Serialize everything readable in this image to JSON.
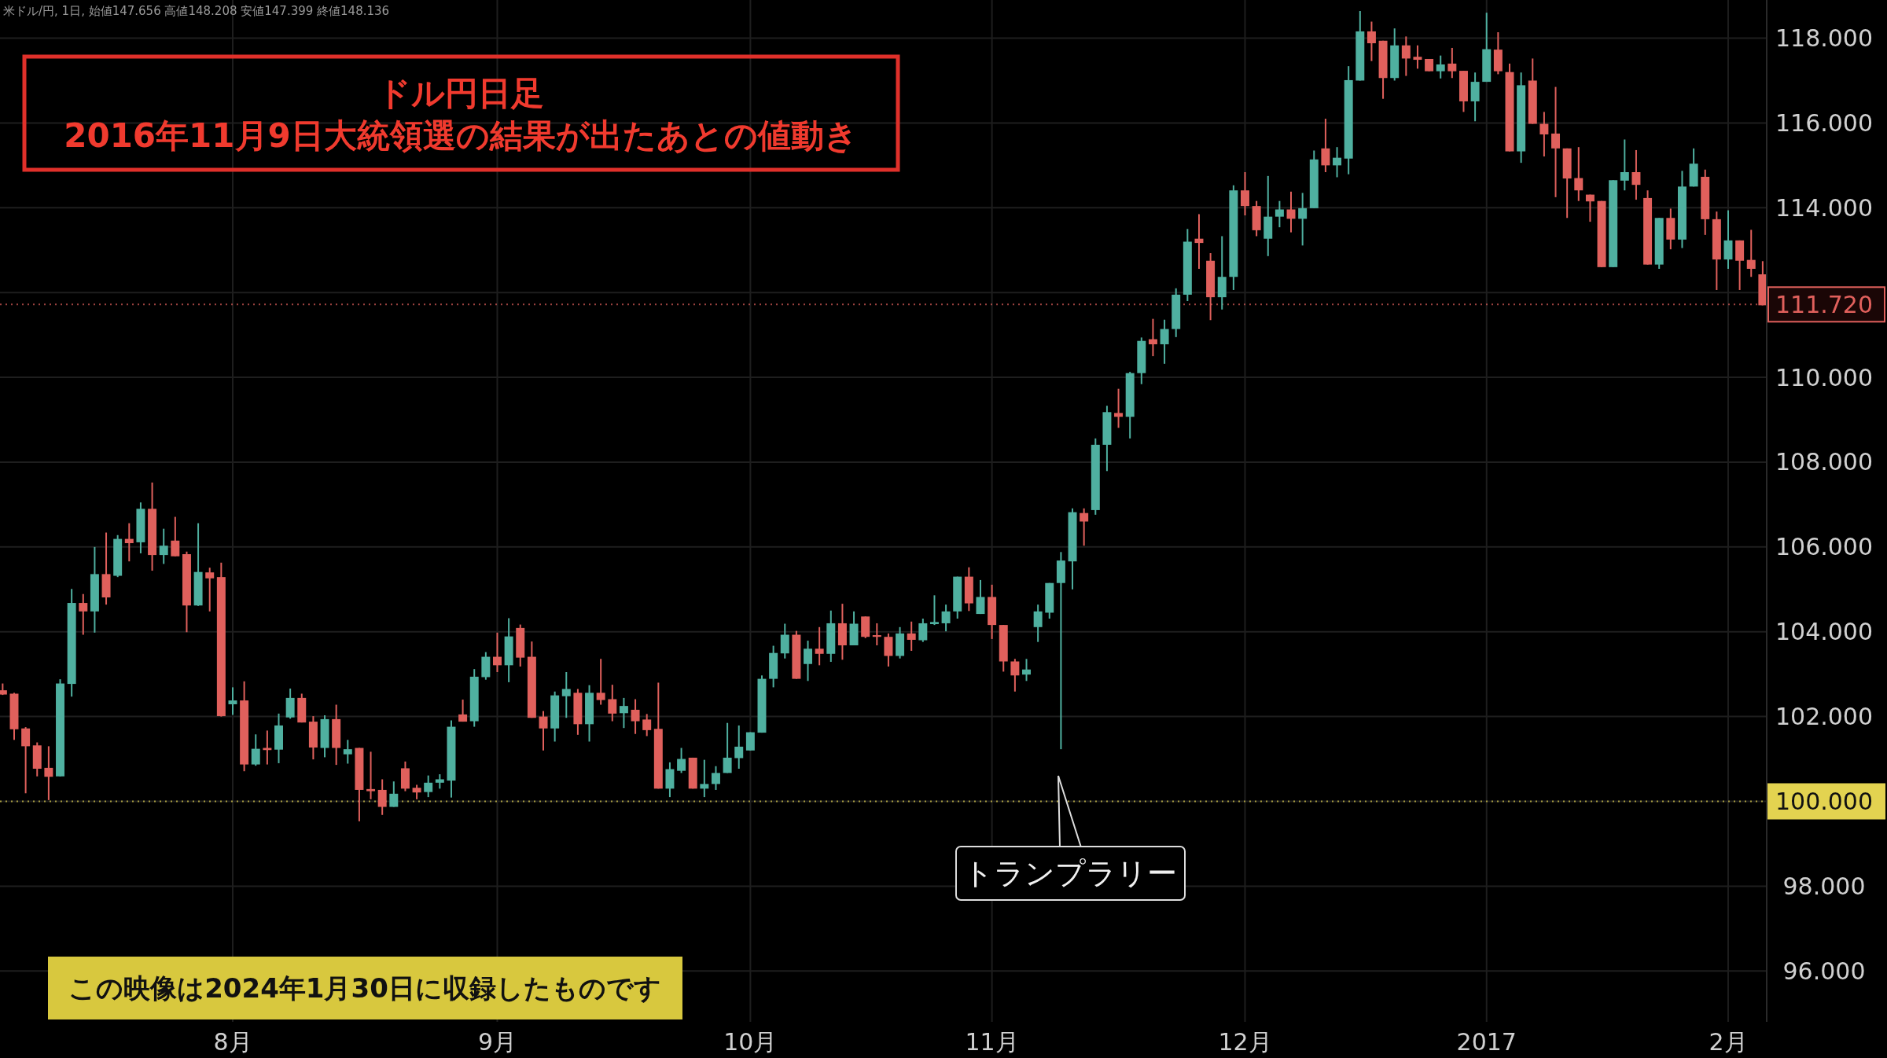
{
  "chart_data": {
    "type": "candlestick",
    "title": "ドル円日足",
    "subtitle": "2016年11月9日大統領選の結果が出たあとの値動き",
    "annotations": [
      "米ドル/円, 1日, 始値147.656 高値148.208 安値147.399 終値148.136",
      "トランプラリー",
      "この映像は2024年1月30日に収録したものです"
    ],
    "categories": [
      null,
      null,
      null,
      null,
      null,
      null,
      null,
      null,
      null,
      null,
      null,
      null,
      null,
      null,
      null,
      null,
      null,
      null,
      null,
      null,
      "8月",
      null,
      null,
      null,
      null,
      null,
      null,
      null,
      null,
      null,
      null,
      null,
      null,
      null,
      null,
      null,
      null,
      null,
      null,
      null,
      null,
      null,
      null,
      "9月",
      null,
      null,
      null,
      null,
      null,
      null,
      null,
      null,
      null,
      null,
      null,
      null,
      null,
      null,
      null,
      null,
      null,
      null,
      null,
      null,
      null,
      "10月",
      null,
      null,
      null,
      null,
      null,
      null,
      null,
      null,
      null,
      null,
      null,
      null,
      null,
      null,
      null,
      null,
      null,
      null,
      null,
      null,
      "11月",
      null,
      null,
      null,
      null,
      null,
      null,
      null,
      null,
      null,
      null,
      null,
      null,
      null,
      null,
      null,
      null,
      null,
      null,
      null,
      null,
      null,
      "12月",
      null,
      null,
      null,
      null,
      null,
      null,
      null,
      null,
      null,
      null,
      null,
      null,
      null,
      null,
      null,
      null,
      null,
      null,
      null,
      null,
      "2017",
      null,
      null,
      null,
      null,
      null,
      null,
      null,
      null,
      null,
      null,
      null,
      null,
      null,
      null,
      null,
      null,
      null,
      null,
      null,
      null,
      "2月",
      null,
      null,
      null
    ],
    "ohlc": [
      [
        102.62,
        102.78,
        102.51,
        102.52
      ],
      [
        102.54,
        102.56,
        101.45,
        101.7
      ],
      [
        101.72,
        101.75,
        100.19,
        101.3
      ],
      [
        101.32,
        101.39,
        100.59,
        100.77
      ],
      [
        100.79,
        101.3,
        100.03,
        100.58
      ],
      [
        100.59,
        102.88,
        100.59,
        102.78
      ],
      [
        102.77,
        105.01,
        102.47,
        104.68
      ],
      [
        104.68,
        104.89,
        103.93,
        104.48
      ],
      [
        104.48,
        106.0,
        103.98,
        105.36
      ],
      [
        105.36,
        106.34,
        104.64,
        104.81
      ],
      [
        105.32,
        106.28,
        105.29,
        106.19
      ],
      [
        106.19,
        106.56,
        105.66,
        106.09
      ],
      [
        106.11,
        107.05,
        105.85,
        106.9
      ],
      [
        106.9,
        107.52,
        105.44,
        105.81
      ],
      [
        105.81,
        106.43,
        105.6,
        106.03
      ],
      [
        106.15,
        106.71,
        105.78,
        105.78
      ],
      [
        105.83,
        105.89,
        103.99,
        104.62
      ],
      [
        104.62,
        106.56,
        104.61,
        105.41
      ],
      [
        105.4,
        105.51,
        104.48,
        105.26
      ],
      [
        105.29,
        105.63,
        102.0,
        102.01
      ],
      [
        102.29,
        102.69,
        102.04,
        102.38
      ],
      [
        102.38,
        102.83,
        100.71,
        100.87
      ],
      [
        100.87,
        101.58,
        100.84,
        101.24
      ],
      [
        101.26,
        101.67,
        100.87,
        101.21
      ],
      [
        101.22,
        102.07,
        100.9,
        101.79
      ],
      [
        101.98,
        102.66,
        101.95,
        102.44
      ],
      [
        102.44,
        102.54,
        101.86,
        101.86
      ],
      [
        101.88,
        102.01,
        100.99,
        101.27
      ],
      [
        101.26,
        102.03,
        101.04,
        101.94
      ],
      [
        101.94,
        102.28,
        100.86,
        101.26
      ],
      [
        101.11,
        101.45,
        100.89,
        101.23
      ],
      [
        101.26,
        101.26,
        99.53,
        100.27
      ],
      [
        100.29,
        101.17,
        100.05,
        100.24
      ],
      [
        100.27,
        100.52,
        99.68,
        99.87
      ],
      [
        99.87,
        100.47,
        99.87,
        100.18
      ],
      [
        100.78,
        100.94,
        100.24,
        100.3
      ],
      [
        100.32,
        100.39,
        100.05,
        100.21
      ],
      [
        100.22,
        100.61,
        100.1,
        100.44
      ],
      [
        100.44,
        100.64,
        100.3,
        100.52
      ],
      [
        100.49,
        101.91,
        100.09,
        101.76
      ],
      [
        102.05,
        102.4,
        101.88,
        101.88
      ],
      [
        101.89,
        103.12,
        101.76,
        102.94
      ],
      [
        102.93,
        103.52,
        102.87,
        103.41
      ],
      [
        103.41,
        103.98,
        103.05,
        103.21
      ],
      [
        103.21,
        104.32,
        102.81,
        103.89
      ],
      [
        104.09,
        104.17,
        103.18,
        103.39
      ],
      [
        103.41,
        103.77,
        101.97,
        101.97
      ],
      [
        102.0,
        102.13,
        101.2,
        101.72
      ],
      [
        101.72,
        102.59,
        101.41,
        102.5
      ],
      [
        102.48,
        103.05,
        101.97,
        102.65
      ],
      [
        102.56,
        102.65,
        101.57,
        101.82
      ],
      [
        101.82,
        102.74,
        101.41,
        102.56
      ],
      [
        102.56,
        103.36,
        102.28,
        102.39
      ],
      [
        102.41,
        102.75,
        101.89,
        102.07
      ],
      [
        102.08,
        102.44,
        101.73,
        102.25
      ],
      [
        102.16,
        102.41,
        101.59,
        101.89
      ],
      [
        101.93,
        102.06,
        101.54,
        101.68
      ],
      [
        101.71,
        102.8,
        100.3,
        100.3
      ],
      [
        100.3,
        100.92,
        100.1,
        100.76
      ],
      [
        100.72,
        101.26,
        100.67,
        101.0
      ],
      [
        101.03,
        101.03,
        100.3,
        100.3
      ],
      [
        100.3,
        100.98,
        100.1,
        100.41
      ],
      [
        100.41,
        100.83,
        100.27,
        100.67
      ],
      [
        100.67,
        101.85,
        100.67,
        101.03
      ],
      [
        101.02,
        101.79,
        100.77,
        101.29
      ],
      [
        101.2,
        101.63,
        101.2,
        101.63
      ],
      [
        101.62,
        102.97,
        101.62,
        102.89
      ],
      [
        102.89,
        103.67,
        102.69,
        103.5
      ],
      [
        103.49,
        104.19,
        103.37,
        103.93
      ],
      [
        103.93,
        104.02,
        102.89,
        102.89
      ],
      [
        103.24,
        103.79,
        102.84,
        103.6
      ],
      [
        103.6,
        104.11,
        103.21,
        103.48
      ],
      [
        103.48,
        104.5,
        103.29,
        104.2
      ],
      [
        104.2,
        104.66,
        103.34,
        103.68
      ],
      [
        103.68,
        104.48,
        103.68,
        104.19
      ],
      [
        104.36,
        104.36,
        103.85,
        103.88
      ],
      [
        103.92,
        104.2,
        103.68,
        103.88
      ],
      [
        103.88,
        103.96,
        103.18,
        103.43
      ],
      [
        103.43,
        104.11,
        103.37,
        103.96
      ],
      [
        103.96,
        104.24,
        103.55,
        103.81
      ],
      [
        103.8,
        104.31,
        103.76,
        104.2
      ],
      [
        104.18,
        104.86,
        104.16,
        104.23
      ],
      [
        104.2,
        104.64,
        104.01,
        104.48
      ],
      [
        104.48,
        105.3,
        104.31,
        105.3
      ],
      [
        105.3,
        105.52,
        104.49,
        104.67
      ],
      [
        104.42,
        105.22,
        104.42,
        104.82
      ],
      [
        104.82,
        105.11,
        103.83,
        104.16
      ],
      [
        104.16,
        104.16,
        103.06,
        103.3
      ],
      [
        103.3,
        103.36,
        102.59,
        102.97
      ],
      [
        102.99,
        103.36,
        102.84,
        103.11
      ],
      [
        104.11,
        104.64,
        103.76,
        104.48
      ],
      [
        104.45,
        105.15,
        104.31,
        105.15
      ],
      [
        105.15,
        105.88,
        101.23,
        105.68
      ],
      [
        105.66,
        106.91,
        105.0,
        106.82
      ],
      [
        106.8,
        106.91,
        106.03,
        106.6
      ],
      [
        106.87,
        108.56,
        106.76,
        108.41
      ],
      [
        108.41,
        109.33,
        107.79,
        109.18
      ],
      [
        109.16,
        109.73,
        108.81,
        109.07
      ],
      [
        109.07,
        110.13,
        108.56,
        110.1
      ],
      [
        110.1,
        110.94,
        109.84,
        110.86
      ],
      [
        110.9,
        111.38,
        110.5,
        110.78
      ],
      [
        110.78,
        111.36,
        110.32,
        111.14
      ],
      [
        111.14,
        112.1,
        110.95,
        111.95
      ],
      [
        111.95,
        113.5,
        111.8,
        113.2
      ],
      [
        113.27,
        113.85,
        112.56,
        113.17
      ],
      [
        112.75,
        112.93,
        111.35,
        111.89
      ],
      [
        111.89,
        113.33,
        111.6,
        112.37
      ],
      [
        112.37,
        114.53,
        112.06,
        114.41
      ],
      [
        114.41,
        114.84,
        113.82,
        114.04
      ],
      [
        114.04,
        114.16,
        113.33,
        113.47
      ],
      [
        113.27,
        114.75,
        112.86,
        113.79
      ],
      [
        113.79,
        114.16,
        113.54,
        113.96
      ],
      [
        113.96,
        114.38,
        113.42,
        113.74
      ],
      [
        113.74,
        114.35,
        113.11,
        113.99
      ],
      [
        113.99,
        115.35,
        113.99,
        115.14
      ],
      [
        115.4,
        116.1,
        114.84,
        115.0
      ],
      [
        115.0,
        115.43,
        114.72,
        115.18
      ],
      [
        115.16,
        117.34,
        114.79,
        117.01
      ],
      [
        117.0,
        118.64,
        117.0,
        118.16
      ],
      [
        118.16,
        118.39,
        117.46,
        117.88
      ],
      [
        117.94,
        117.94,
        116.57,
        117.06
      ],
      [
        117.06,
        118.23,
        117.0,
        117.83
      ],
      [
        117.83,
        118.04,
        117.11,
        117.52
      ],
      [
        117.56,
        117.83,
        117.28,
        117.49
      ],
      [
        117.51,
        117.51,
        117.22,
        117.22
      ],
      [
        117.22,
        117.59,
        117.05,
        117.38
      ],
      [
        117.4,
        117.77,
        117.06,
        117.22
      ],
      [
        117.23,
        117.23,
        116.26,
        116.51
      ],
      [
        116.51,
        117.19,
        116.04,
        116.97
      ],
      [
        116.97,
        118.6,
        116.97,
        117.74
      ],
      [
        117.73,
        118.14,
        117.15,
        117.22
      ],
      [
        117.2,
        117.4,
        115.33,
        115.33
      ],
      [
        115.33,
        117.19,
        115.06,
        116.89
      ],
      [
        117.0,
        117.52,
        115.98,
        115.98
      ],
      [
        115.98,
        116.26,
        115.21,
        115.73
      ],
      [
        115.75,
        116.85,
        114.25,
        115.4
      ],
      [
        115.4,
        115.4,
        113.76,
        114.69
      ],
      [
        114.7,
        115.43,
        114.16,
        114.41
      ],
      [
        114.31,
        114.31,
        113.67,
        114.15
      ],
      [
        114.16,
        114.16,
        112.6,
        112.6
      ],
      [
        112.6,
        114.65,
        112.6,
        114.65
      ],
      [
        114.64,
        115.61,
        114.41,
        114.84
      ],
      [
        114.84,
        115.36,
        114.19,
        114.54
      ],
      [
        114.23,
        114.41,
        112.66,
        112.66
      ],
      [
        112.66,
        113.76,
        112.56,
        113.76
      ],
      [
        113.76,
        113.98,
        113.02,
        113.25
      ],
      [
        113.25,
        114.87,
        113.05,
        114.5
      ],
      [
        114.5,
        115.4,
        114.5,
        115.04
      ],
      [
        114.73,
        114.9,
        113.36,
        113.73
      ],
      [
        113.73,
        113.91,
        112.06,
        112.78
      ],
      [
        112.78,
        113.94,
        112.56,
        113.23
      ],
      [
        113.23,
        113.23,
        112.06,
        112.75
      ],
      [
        112.77,
        113.48,
        112.37,
        112.56
      ],
      [
        112.43,
        112.74,
        111.7,
        111.7
      ]
    ],
    "colors": [
      "#e0605c",
      "#e0605c",
      "#e0605c",
      "#e0605c",
      "#e0605c",
      "#4fb0a0",
      "#4fb0a0",
      "#e0605c",
      "#4fb0a0",
      "#e0605c",
      "#4fb0a0",
      "#e0605c",
      "#4fb0a0",
      "#e0605c",
      "#4fb0a0",
      "#e0605c",
      "#e0605c",
      "#4fb0a0",
      "#e0605c",
      "#e0605c",
      "#4fb0a0",
      "#e0605c",
      "#4fb0a0",
      "#e0605c",
      "#4fb0a0",
      "#4fb0a0",
      "#e0605c",
      "#e0605c",
      "#4fb0a0",
      "#e0605c",
      "#4fb0a0",
      "#e0605c",
      "#e0605c",
      "#e0605c",
      "#4fb0a0",
      "#e0605c",
      "#e0605c",
      "#4fb0a0",
      "#4fb0a0",
      "#4fb0a0",
      "#e0605c",
      "#4fb0a0",
      "#4fb0a0",
      "#e0605c",
      "#4fb0a0",
      "#e0605c",
      "#e0605c",
      "#e0605c",
      "#4fb0a0",
      "#4fb0a0",
      "#e0605c",
      "#4fb0a0",
      "#e0605c",
      "#e0605c",
      "#4fb0a0",
      "#e0605c",
      "#e0605c",
      "#e0605c",
      "#4fb0a0",
      "#4fb0a0",
      "#e0605c",
      "#4fb0a0",
      "#4fb0a0",
      "#4fb0a0",
      "#4fb0a0",
      "#4fb0a0",
      "#4fb0a0",
      "#4fb0a0",
      "#4fb0a0",
      "#e0605c",
      "#4fb0a0",
      "#e0605c",
      "#4fb0a0",
      "#e0605c",
      "#4fb0a0",
      "#e0605c",
      "#e0605c",
      "#e0605c",
      "#4fb0a0",
      "#e0605c",
      "#4fb0a0",
      "#4fb0a0",
      "#4fb0a0",
      "#4fb0a0",
      "#e0605c",
      "#4fb0a0",
      "#e0605c",
      "#e0605c",
      "#e0605c",
      "#4fb0a0",
      "#4fb0a0",
      "#4fb0a0",
      "#4fb0a0",
      "#4fb0a0",
      "#e0605c",
      "#4fb0a0",
      "#4fb0a0",
      "#e0605c",
      "#4fb0a0",
      "#4fb0a0",
      "#e0605c",
      "#4fb0a0",
      "#4fb0a0",
      "#4fb0a0",
      "#e0605c",
      "#e0605c",
      "#4fb0a0",
      "#4fb0a0",
      "#e0605c",
      "#e0605c",
      "#4fb0a0",
      "#4fb0a0",
      "#e0605c",
      "#4fb0a0",
      "#4fb0a0",
      "#e0605c",
      "#4fb0a0",
      "#4fb0a0",
      "#4fb0a0",
      "#e0605c",
      "#e0605c",
      "#4fb0a0",
      "#e0605c",
      "#e0605c",
      "#e0605c",
      "#4fb0a0",
      "#e0605c",
      "#e0605c",
      "#4fb0a0",
      "#4fb0a0",
      "#e0605c",
      "#e0605c",
      "#4fb0a0",
      "#e0605c",
      "#e0605c",
      "#e0605c",
      "#e0605c",
      "#e0605c",
      "#e0605c",
      "#e0605c",
      "#4fb0a0",
      "#4fb0a0",
      "#e0605c",
      "#e0605c",
      "#4fb0a0",
      "#e0605c",
      "#4fb0a0",
      "#4fb0a0",
      "#e0605c",
      "#e0605c",
      "#4fb0a0",
      "#e0605c",
      "#e0605c",
      "#e0605c"
    ],
    "ylim": [
      94.8,
      118.9
    ],
    "yticks": [
      {
        "value": 96,
        "label": "96.000"
      },
      {
        "value": 98,
        "label": "98.000"
      },
      {
        "value": 100,
        "label": null
      },
      {
        "value": 102,
        "label": "102.000"
      },
      {
        "value": 104,
        "label": "104.000"
      },
      {
        "value": 106,
        "label": "106.000"
      },
      {
        "value": 108,
        "label": "108.000"
      },
      {
        "value": 110,
        "label": "110.000"
      },
      {
        "value": 112,
        "label": null
      },
      {
        "value": 114,
        "label": "114.000"
      },
      {
        "value": 116,
        "label": "116.000"
      },
      {
        "value": 118,
        "label": "118.000"
      }
    ],
    "ref_lines": [
      {
        "axis": "y",
        "value": 100,
        "label": "100.000",
        "color": "#e3d350",
        "line_style": "dotted"
      },
      {
        "axis": "y",
        "value": 111.72,
        "label": "111.720",
        "color": "#e0605c",
        "line_style": "dotted"
      }
    ],
    "grid": true
  }
}
